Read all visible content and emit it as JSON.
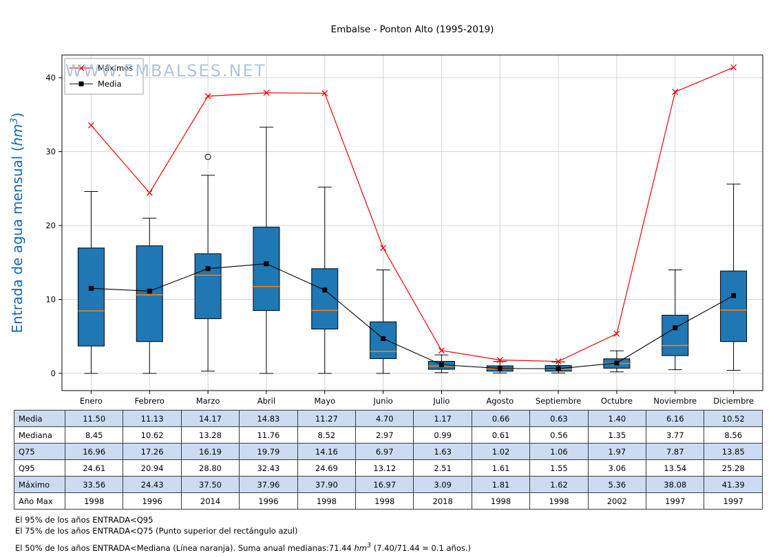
{
  "watermark": "WWW.EMBALSES.NET",
  "chart_data": {
    "type": "box",
    "title": "Embalse - Ponton Alto (1995-2019)",
    "xlabel": "",
    "ylabel": "Entrada de agua mensual (hm3)",
    "ylabel_parts": {
      "pre": "Entrada de agua mensual (",
      "unit": "hm",
      "sup": "3",
      "post": ")"
    },
    "legend": [
      "Máximos",
      "Media"
    ],
    "legend_position": "upper left",
    "grid": true,
    "ylim": [
      -2.33,
      43.07
    ],
    "yticks": [
      0,
      10,
      20,
      30,
      40
    ],
    "categories": [
      "Enero",
      "Febrero",
      "Marzo",
      "Abril",
      "Mayo",
      "Junio",
      "Julio",
      "Agosto",
      "Septiembre",
      "Octubre",
      "Noviembre",
      "Diciembre"
    ],
    "stats": {
      "media": [
        11.5,
        11.13,
        14.17,
        14.83,
        11.27,
        4.7,
        1.17,
        0.66,
        0.63,
        1.4,
        6.16,
        10.52
      ],
      "mediana": [
        8.45,
        10.62,
        13.28,
        11.76,
        8.52,
        2.97,
        0.99,
        0.61,
        0.56,
        1.35,
        3.77,
        8.56
      ],
      "q75": [
        16.96,
        17.26,
        16.19,
        19.79,
        14.16,
        6.97,
        1.63,
        1.02,
        1.06,
        1.97,
        7.87,
        13.85
      ],
      "q95": [
        24.61,
        20.94,
        28.8,
        32.43,
        24.69,
        13.12,
        2.51,
        1.61,
        1.55,
        3.06,
        13.54,
        25.28
      ],
      "maximo": [
        33.56,
        24.43,
        37.5,
        37.96,
        37.9,
        16.97,
        3.09,
        1.81,
        1.62,
        5.36,
        38.08,
        41.39
      ],
      "ano_max": [
        "1998",
        "1996",
        "2014",
        "1996",
        "1998",
        "1998",
        "2018",
        "1998",
        "1998",
        "2002",
        "1997",
        "1997"
      ]
    },
    "box": {
      "q1": [
        3.7,
        4.3,
        7.4,
        8.5,
        6.0,
        2.0,
        0.55,
        0.3,
        0.3,
        0.7,
        2.4,
        4.3
      ],
      "whisker_low": [
        0.0,
        0.0,
        0.3,
        0.0,
        0.0,
        0.0,
        0.1,
        0.05,
        0.05,
        0.2,
        0.5,
        0.4
      ],
      "whisker_high": [
        24.6,
        21.0,
        26.8,
        33.3,
        25.2,
        14.0,
        2.5,
        1.6,
        1.55,
        3.06,
        14.0,
        25.6
      ],
      "outliers": [
        [
          2,
          29.3
        ]
      ]
    }
  },
  "table": {
    "row_labels": [
      "Media",
      "Mediana",
      "Q75",
      "Q95",
      "Máximo",
      "Año Max"
    ],
    "row_keys": [
      "media",
      "mediana",
      "q75",
      "q95",
      "maximo",
      "ano_max"
    ],
    "shaded_rows": [
      0,
      2,
      4
    ]
  },
  "footnotes": {
    "line1": "El 95% de los años ENTRADA<Q95",
    "line2": "El 75% de los años ENTRADA<Q75 (Punto superior del rectángulo azul)",
    "line3_pre": "El 50% de los años ENTRADA<Mediana (Línea naranja). Suma anual medianas:71.44 ",
    "line3_unit": "hm",
    "line3_sup": "3",
    "line3_post": " (7.40/71.44 = 0.1 años.)"
  },
  "colors": {
    "box_fill": "#1f77b4",
    "box_edge": "#000000",
    "median": "#ff7f0e",
    "maximos": "#ee0000",
    "media_line": "#000000",
    "ylabel_blue": "#1767af",
    "watermark": "#a6c0d8",
    "grid": "#c9c9c9",
    "table_shade": "#ccdbf1"
  }
}
